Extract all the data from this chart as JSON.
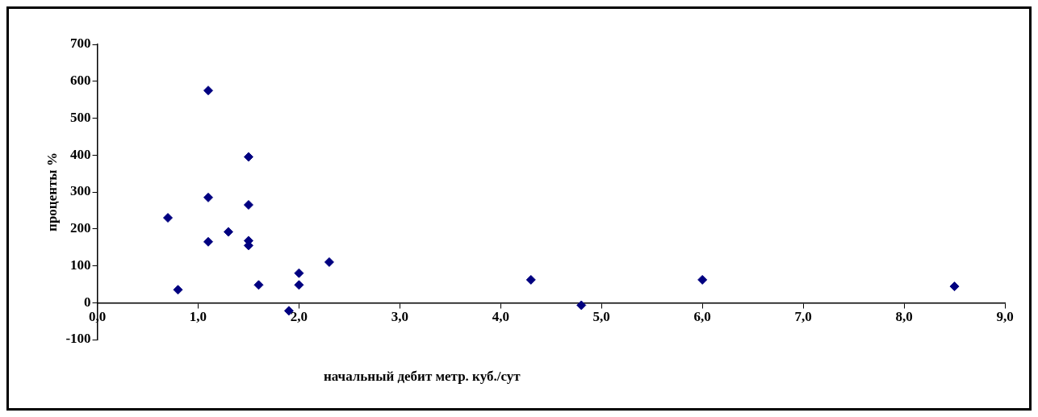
{
  "chart_data": {
    "type": "scatter",
    "xlabel": "начальный дебит метр. куб./сут",
    "ylabel": "проценты %",
    "x": [
      0.7,
      0.8,
      1.1,
      1.1,
      1.1,
      1.3,
      1.5,
      1.5,
      1.5,
      1.5,
      1.6,
      1.9,
      2.0,
      2.0,
      2.3,
      4.3,
      4.8,
      6.0,
      8.5
    ],
    "series": [
      {
        "color": "#000080",
        "values": [
          230,
          35,
          575,
          285,
          165,
          192,
          395,
          265,
          168,
          155,
          48,
          -22,
          80,
          48,
          110,
          62,
          -7,
          62,
          44
        ]
      }
    ],
    "xlim": [
      0,
      9
    ],
    "xticks": [
      {
        "value": 0,
        "label": "0,0"
      },
      {
        "value": 1,
        "label": "1,0"
      },
      {
        "value": 2,
        "label": "2,0"
      },
      {
        "value": 3,
        "label": "3,0"
      },
      {
        "value": 4,
        "label": "4,0"
      },
      {
        "value": 5,
        "label": "5,0"
      },
      {
        "value": 6,
        "label": "6,0"
      },
      {
        "value": 7,
        "label": "7,0"
      },
      {
        "value": 8,
        "label": "8,0"
      },
      {
        "value": 9,
        "label": "9,0"
      }
    ],
    "ylim": [
      -100,
      700
    ],
    "yticks": [
      -100,
      0,
      100,
      200,
      300,
      400,
      500,
      600,
      700
    ],
    "grid": false,
    "legend": false,
    "marker": "diamond"
  }
}
